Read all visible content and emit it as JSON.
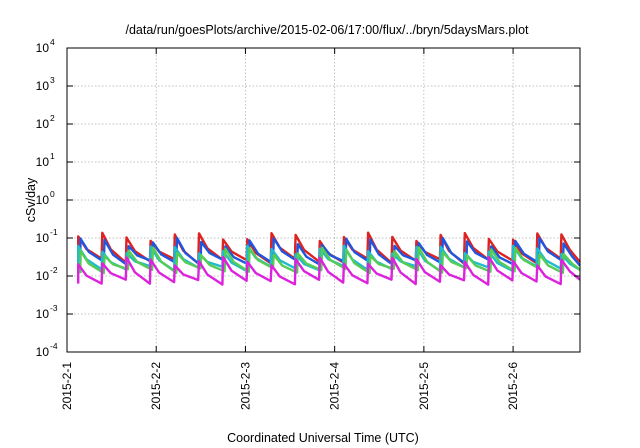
{
  "chart_data": {
    "type": "line",
    "title": "/data/run/goesPlots/archive/2015-02-06/17:00/flux/../bryn/5daysMars.plot",
    "xlabel": "Coordinated Universal Time (UTC)",
    "ylabel": "cSv/day",
    "yscale": "log",
    "ylim": [
      "1e-4",
      "1e4"
    ],
    "y_ticks": [
      {
        "base": "10",
        "exp": "4"
      },
      {
        "base": "10",
        "exp": "3"
      },
      {
        "base": "10",
        "exp": "2"
      },
      {
        "base": "10",
        "exp": "1"
      },
      {
        "base": "10",
        "exp": "0"
      },
      {
        "base": "10",
        "exp": "-1"
      },
      {
        "base": "10",
        "exp": "-2"
      },
      {
        "base": "10",
        "exp": "-3"
      },
      {
        "base": "10",
        "exp": "-4"
      }
    ],
    "x_ticks": [
      "2015-2-1",
      "2015-2-2",
      "2015-2-3",
      "2015-2-4",
      "2015-2-5",
      "2015-2-6"
    ],
    "grid": true,
    "pattern": {
      "sawtooth_period_hours": 6.5,
      "total_hours": 138,
      "peak_hours_offset": 3
    },
    "series": [
      {
        "color": "#dd2222",
        "peak": 0.11,
        "trough": 0.025
      },
      {
        "color": "#2255dd",
        "peak": 0.08,
        "trough": 0.022
      },
      {
        "color": "#22bbcc",
        "peak": 0.05,
        "trough": 0.016
      },
      {
        "color": "#55cc55",
        "peak": 0.045,
        "trough": 0.014
      },
      {
        "color": "#dd22dd",
        "peak": 0.025,
        "trough": 0.007
      }
    ]
  }
}
